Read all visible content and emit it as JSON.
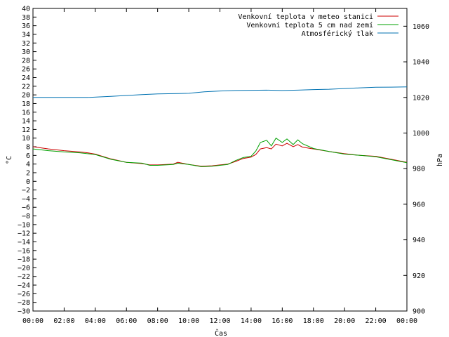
{
  "chart_data": {
    "type": "line",
    "xlabel": "Čas",
    "ylabel_left": "°C",
    "ylabel_right": "hPa",
    "x_ticks": [
      "00:00",
      "02:00",
      "04:00",
      "06:00",
      "08:00",
      "10:00",
      "12:00",
      "14:00",
      "16:00",
      "18:00",
      "20:00",
      "22:00",
      "00:00"
    ],
    "x_range_hours": [
      0,
      24
    ],
    "ylim_left": [
      -30,
      40
    ],
    "y_left_step": 2,
    "ylim_right": [
      900,
      1070
    ],
    "y_right_ticks": [
      900,
      920,
      940,
      960,
      980,
      1000,
      1020,
      1040,
      1060
    ],
    "legend_position": "top-right",
    "grid": false,
    "series": [
      {
        "name": "Venkovní teplota v meteo stanici",
        "axis": "left",
        "color": "#cc0000",
        "points": [
          [
            0,
            8.0
          ],
          [
            1,
            7.5
          ],
          [
            2,
            7.1
          ],
          [
            3,
            6.8
          ],
          [
            3.5,
            6.6
          ],
          [
            4,
            6.3
          ],
          [
            5,
            5.2
          ],
          [
            6,
            4.4
          ],
          [
            7,
            4.1
          ],
          [
            7.5,
            3.8
          ],
          [
            8,
            3.8
          ],
          [
            9,
            4.0
          ],
          [
            9.3,
            4.4
          ],
          [
            10,
            3.9
          ],
          [
            10.8,
            3.5
          ],
          [
            11.5,
            3.6
          ],
          [
            12,
            3.8
          ],
          [
            12.5,
            4.0
          ],
          [
            13,
            4.6
          ],
          [
            13.5,
            5.3
          ],
          [
            14,
            5.6
          ],
          [
            14.3,
            6.2
          ],
          [
            14.6,
            7.5
          ],
          [
            15,
            7.8
          ],
          [
            15.3,
            7.5
          ],
          [
            15.6,
            8.6
          ],
          [
            16,
            8.2
          ],
          [
            16.3,
            8.8
          ],
          [
            16.7,
            8.0
          ],
          [
            17,
            8.5
          ],
          [
            17.3,
            7.9
          ],
          [
            18,
            7.5
          ],
          [
            19,
            6.9
          ],
          [
            20,
            6.4
          ],
          [
            21,
            6.0
          ],
          [
            22,
            5.8
          ],
          [
            23,
            5.1
          ],
          [
            24,
            4.4
          ]
        ]
      },
      {
        "name": "Venkovní teplota 5 cm nad zemí",
        "axis": "left",
        "color": "#00a000",
        "points": [
          [
            0,
            7.5
          ],
          [
            1,
            7.1
          ],
          [
            2,
            6.8
          ],
          [
            3,
            6.6
          ],
          [
            4,
            6.2
          ],
          [
            5,
            5.1
          ],
          [
            6,
            4.4
          ],
          [
            7,
            4.2
          ],
          [
            7.5,
            3.7
          ],
          [
            8,
            3.7
          ],
          [
            9,
            3.9
          ],
          [
            9.3,
            4.2
          ],
          [
            10,
            3.9
          ],
          [
            10.8,
            3.4
          ],
          [
            11.5,
            3.5
          ],
          [
            12,
            3.7
          ],
          [
            12.5,
            3.9
          ],
          [
            13,
            4.8
          ],
          [
            13.5,
            5.5
          ],
          [
            14,
            5.8
          ],
          [
            14.3,
            7.0
          ],
          [
            14.6,
            9.0
          ],
          [
            15,
            9.5
          ],
          [
            15.3,
            8.2
          ],
          [
            15.6,
            10.0
          ],
          [
            16,
            9.0
          ],
          [
            16.3,
            9.8
          ],
          [
            16.7,
            8.5
          ],
          [
            17,
            9.6
          ],
          [
            17.3,
            8.7
          ],
          [
            18,
            7.6
          ],
          [
            19,
            6.9
          ],
          [
            20,
            6.3
          ],
          [
            21,
            6.0
          ],
          [
            22,
            5.7
          ],
          [
            23,
            5.0
          ],
          [
            24,
            4.3
          ]
        ]
      },
      {
        "name": "Atmosférický tlak",
        "axis": "right",
        "color": "#0072b2",
        "points": [
          [
            0,
            1020
          ],
          [
            2,
            1020
          ],
          [
            3.5,
            1020
          ],
          [
            5,
            1020.6
          ],
          [
            6,
            1021.1
          ],
          [
            7,
            1021.6
          ],
          [
            8,
            1022
          ],
          [
            9,
            1022.1
          ],
          [
            10,
            1022.3
          ],
          [
            11,
            1023.2
          ],
          [
            12,
            1023.6
          ],
          [
            13,
            1023.9
          ],
          [
            14,
            1024
          ],
          [
            15,
            1024.1
          ],
          [
            16,
            1023.9
          ],
          [
            17,
            1024.1
          ],
          [
            18,
            1024.4
          ],
          [
            19,
            1024.6
          ],
          [
            20,
            1025
          ],
          [
            21,
            1025.4
          ],
          [
            22,
            1025.7
          ],
          [
            23,
            1025.8
          ],
          [
            24,
            1025.9
          ]
        ]
      }
    ]
  }
}
